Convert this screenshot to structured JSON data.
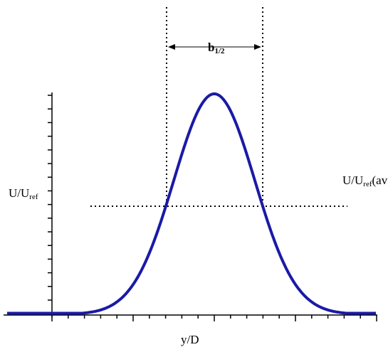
{
  "labels": {
    "y_axis_main": "U/U",
    "y_axis_sub": "ref",
    "avg_main": "U/U",
    "avg_sub": "ref",
    "avg_tail": "(avg",
    "x_axis": "y/D",
    "width_main": "b",
    "width_sub": "1/2"
  },
  "colors": {
    "curve": "#1a1aa6",
    "axes": "#000000"
  }
}
